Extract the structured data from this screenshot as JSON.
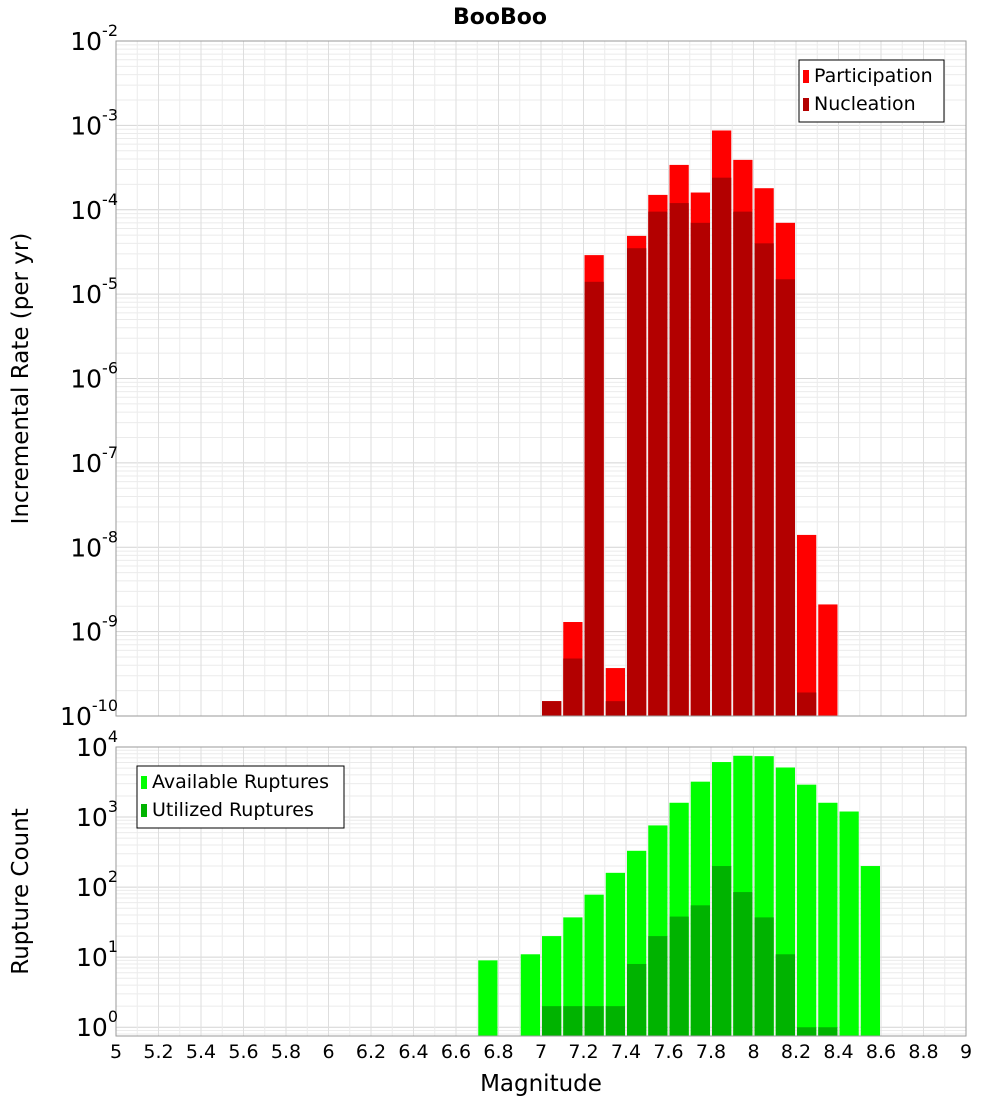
{
  "chart_data": [
    {
      "type": "bar",
      "title": "BooBoo",
      "ylabel": "Incremental Rate (per yr)",
      "xlabel": "",
      "ylog": true,
      "ylim": [
        1e-10,
        0.01
      ],
      "xlim": [
        5,
        9
      ],
      "bin_width": 0.1,
      "legend_position": "top-right",
      "grid": true,
      "y_ticks": [
        {
          "base": "10",
          "exp": "-2",
          "value": 0.01
        },
        {
          "base": "10",
          "exp": "-3",
          "value": 0.001
        },
        {
          "base": "10",
          "exp": "-4",
          "value": 0.0001
        },
        {
          "base": "10",
          "exp": "-5",
          "value": 1e-05
        },
        {
          "base": "10",
          "exp": "-6",
          "value": 1e-06
        },
        {
          "base": "10",
          "exp": "-7",
          "value": 1e-07
        },
        {
          "base": "10",
          "exp": "-8",
          "value": 1e-08
        },
        {
          "base": "10",
          "exp": "-9",
          "value": 1e-09
        },
        {
          "base": "10",
          "exp": "-10",
          "value": 1e-10
        }
      ],
      "series": [
        {
          "name": "Participation",
          "color": "#ff0000",
          "x": [
            7.05,
            7.15,
            7.25,
            7.35,
            7.45,
            7.55,
            7.65,
            7.75,
            7.85,
            7.95,
            8.05,
            8.15,
            8.25,
            8.35
          ],
          "values": [
            1.5e-10,
            1.3e-09,
            2.9e-05,
            3.7e-10,
            4.9e-05,
            0.00015,
            0.00034,
            0.00016,
            0.00087,
            0.00039,
            0.00018,
            7e-05,
            1.4e-08,
            2.1e-09
          ]
        },
        {
          "name": "Nucleation",
          "color": "#b30000",
          "x": [
            7.05,
            7.15,
            7.25,
            7.35,
            7.45,
            7.55,
            7.65,
            7.75,
            7.85,
            7.95,
            8.05,
            8.15,
            8.25
          ],
          "values": [
            1.5e-10,
            4.8e-10,
            1.4e-05,
            1.5e-10,
            3.5e-05,
            9.5e-05,
            0.00012,
            7e-05,
            0.00024,
            9.5e-05,
            4e-05,
            1.5e-05,
            1.9e-10
          ]
        }
      ]
    },
    {
      "type": "bar",
      "title": "",
      "ylabel": "Rupture Count",
      "xlabel": "Magnitude",
      "ylog": true,
      "ylim": [
        0.75,
        10000
      ],
      "xlim": [
        5,
        9
      ],
      "bin_width": 0.1,
      "legend_position": "top-left",
      "grid": true,
      "y_ticks": [
        {
          "base": "10",
          "exp": "4",
          "value": 10000
        },
        {
          "base": "10",
          "exp": "3",
          "value": 1000
        },
        {
          "base": "10",
          "exp": "2",
          "value": 100
        },
        {
          "base": "10",
          "exp": "1",
          "value": 10
        },
        {
          "base": "10",
          "exp": "0",
          "value": 1
        }
      ],
      "x_ticks": [
        "5",
        "5.2",
        "5.4",
        "5.6",
        "5.8",
        "6",
        "6.2",
        "6.4",
        "6.6",
        "6.8",
        "7",
        "7.2",
        "7.4",
        "7.6",
        "7.8",
        "8",
        "8.2",
        "8.4",
        "8.6",
        "8.8",
        "9"
      ],
      "series": [
        {
          "name": "Available Ruptures",
          "color": "#00ff00",
          "x": [
            6.75,
            6.95,
            7.05,
            7.15,
            7.25,
            7.35,
            7.45,
            7.55,
            7.65,
            7.75,
            7.85,
            7.95,
            8.05,
            8.15,
            8.25,
            8.35,
            8.45,
            8.55
          ],
          "values": [
            9,
            11,
            20,
            37,
            78,
            160,
            330,
            760,
            1600,
            3200,
            6100,
            7500,
            7400,
            5100,
            2900,
            1600,
            1200,
            200
          ]
        },
        {
          "name": "Utilized Ruptures",
          "color": "#00b300",
          "x": [
            7.05,
            7.15,
            7.25,
            7.35,
            7.45,
            7.55,
            7.65,
            7.75,
            7.85,
            7.95,
            8.05,
            8.15,
            8.25,
            8.35
          ],
          "values": [
            2,
            2,
            2,
            2,
            8,
            20,
            38,
            55,
            200,
            85,
            37,
            11,
            1,
            1
          ]
        }
      ]
    }
  ]
}
